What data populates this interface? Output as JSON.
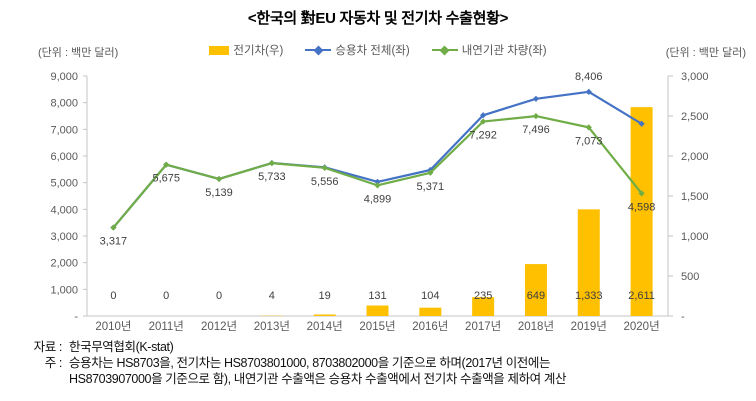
{
  "title": "<한국의 對EU 자동차 및 전기차 수출현황>",
  "units": {
    "left": "(단위 : 백만 달러)",
    "right": "(단위 : 백만 달러)"
  },
  "legend": [
    {
      "label": "전기차(우)",
      "type": "bar",
      "color": "#FFC000"
    },
    {
      "label": "승용차 전체(좌)",
      "type": "line",
      "color": "#4472C4"
    },
    {
      "label": "내연기관 차량(좌)",
      "type": "line",
      "color": "#70AD47"
    }
  ],
  "chart_data": {
    "type": "combo-bar-line",
    "categories": [
      "2010년",
      "2011년",
      "2012년",
      "2013년",
      "2014년",
      "2015년",
      "2016년",
      "2017년",
      "2018년",
      "2019년",
      "2020년"
    ],
    "series": [
      {
        "name": "전기차(우)",
        "type": "bar",
        "axis": "right",
        "color": "#FFC000",
        "values": [
          0,
          0,
          0,
          4,
          19,
          131,
          104,
          235,
          649,
          1333,
          2611
        ],
        "labels": [
          "0",
          "0",
          "0",
          "4",
          "19",
          "131",
          "104",
          "235",
          "649",
          "1,333",
          "2,611"
        ]
      },
      {
        "name": "승용차 전체(좌)",
        "type": "line",
        "axis": "left",
        "color": "#4472C4",
        "values": [
          3317,
          5675,
          5139,
          5737,
          5575,
          5030,
          5475,
          7527,
          8145,
          8406,
          7209
        ],
        "point_labels": [
          {
            "index": 9,
            "text": "8,406",
            "position": "above"
          }
        ]
      },
      {
        "name": "내연기관 차량(좌)",
        "type": "line",
        "axis": "left",
        "color": "#70AD47",
        "values": [
          3317,
          5675,
          5139,
          5733,
          5556,
          4899,
          5371,
          7292,
          7496,
          7073,
          4598
        ],
        "point_labels": [
          {
            "index": 0,
            "text": "3,317",
            "position": "below"
          },
          {
            "index": 1,
            "text": "5,675",
            "position": "below"
          },
          {
            "index": 2,
            "text": "5,139",
            "position": "below"
          },
          {
            "index": 3,
            "text": "5,733",
            "position": "below"
          },
          {
            "index": 4,
            "text": "5,556",
            "position": "below"
          },
          {
            "index": 5,
            "text": "4,899",
            "position": "below"
          },
          {
            "index": 6,
            "text": "5,371",
            "position": "below"
          },
          {
            "index": 7,
            "text": "7,292",
            "position": "below"
          },
          {
            "index": 8,
            "text": "7,496",
            "position": "below"
          },
          {
            "index": 9,
            "text": "7,073",
            "position": "below"
          },
          {
            "index": 10,
            "text": "4,598",
            "position": "below"
          }
        ]
      }
    ],
    "left_axis": {
      "min": 0,
      "max": 9000,
      "step": 1000,
      "ticks": [
        "-",
        "1,000",
        "2,000",
        "3,000",
        "4,000",
        "5,000",
        "6,000",
        "7,000",
        "8,000",
        "9,000"
      ]
    },
    "right_axis": {
      "min": 0,
      "max": 3000,
      "step": 500,
      "ticks": [
        "-",
        "500",
        "1,000",
        "1,500",
        "2,000",
        "2,500",
        "3,000"
      ]
    },
    "grid": false,
    "legend_position": "top"
  },
  "colors": {
    "bar": "#FFC000",
    "line_total": "#4472C4",
    "line_ice": "#70AD47",
    "axis_text": "#595959",
    "data_label": "#404040",
    "axis_line": "#C6C6C6"
  },
  "footnotes": {
    "source_label": "자료 :",
    "source_text": "한국무역협회(K-stat)",
    "note_label": "주 :",
    "note_line1": "승용차는 HS8703을, 전기차는 HS8703801000, 8703802000을 기준으로 하며(2017년 이전에는",
    "note_line2": "HS8703907000을 기준으로 함), 내연기관 수출액은 승용차 수출액에서 전기차 수출액을 제하여 계산"
  }
}
